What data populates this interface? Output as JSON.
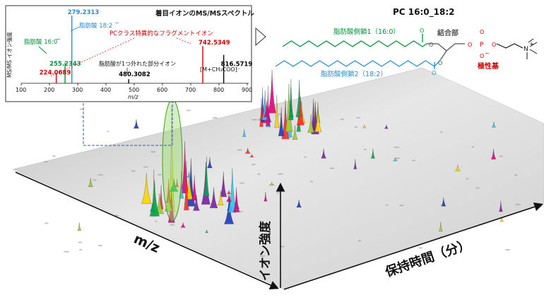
{
  "surface": {
    "axis_mz": "m/z",
    "axis_intensity": "イオン強度",
    "axis_rt": "保持時間（分）"
  },
  "chart_data": [
    {
      "type": "bar",
      "title": "着目イオンのMS/MSスペクトル",
      "xlabel": "m/z",
      "ylabel": "MS/MS イオン強度",
      "xlim": [
        100,
        900
      ],
      "x_ticks": [
        100,
        200,
        300,
        400,
        500,
        600,
        700,
        800,
        900
      ],
      "peaks": [
        {
          "mz": 224.0689,
          "label": "224.0689",
          "rel": 0.15,
          "color": "#cc0000"
        },
        {
          "mz": 255.2343,
          "label": "255.2343",
          "rel": 0.3,
          "color": "#00913a"
        },
        {
          "mz": 279.2313,
          "label": "279.2313",
          "rel": 1.0,
          "color": "#2b8ccf"
        },
        {
          "mz": 480.3082,
          "label": "480.3082",
          "rel": 0.06,
          "color": "#000000"
        },
        {
          "mz": 742.5349,
          "label": "742.5349",
          "rel": 0.55,
          "color": "#cc0000"
        },
        {
          "mz": 816.5719,
          "label": "816.5719",
          "rel": 0.42,
          "color": "#000000"
        }
      ],
      "annotations": {
        "fa160": "脂肪酸 16:0",
        "fa182": "脂肪酸 18:2",
        "pc_specific": "PCクラス特異的なフラグメントイオン",
        "fa_loss": "脂肪酸が1つ外れた部分イオン",
        "precursor": "[M+CH₃COO]⁻",
        "charge": "−"
      }
    }
  ],
  "molecule": {
    "name": "PC 16:0_18:2",
    "chain1": "脂肪酸側鎖1（16:0）",
    "chain2": "脂肪酸側鎖2（18:2）",
    "linker": "結合部",
    "headgroup": "極性基",
    "atoms": {
      "o": "O",
      "p": "P",
      "n": "N",
      "plus": "+",
      "minus": "−"
    },
    "colors": {
      "chain1": "#00913a",
      "chain2": "#2b8ccf",
      "head": "#cc0000",
      "linker": "#555555"
    }
  },
  "colors": {
    "panel_border": "#333333",
    "guide": "#3b4fd6"
  }
}
